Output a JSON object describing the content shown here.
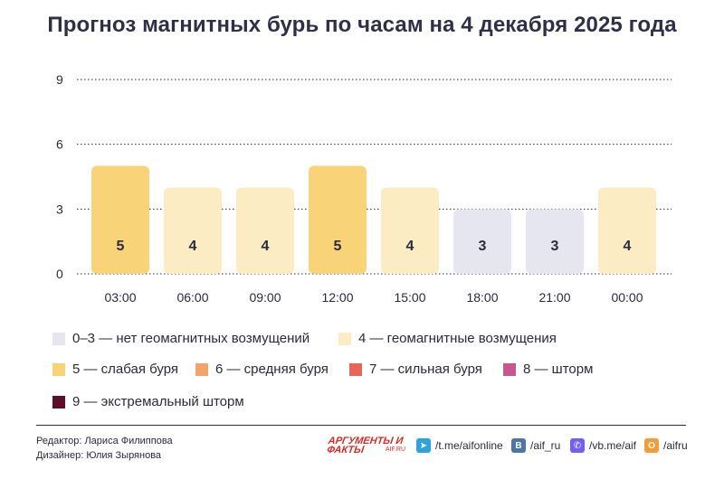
{
  "title": "Прогноз магнитных бурь по часам на 4 декабря 2025 года",
  "chart_data": {
    "type": "bar",
    "title": "Прогноз магнитных бурь по часам на 4 декабря 2025 года",
    "categories": [
      "03:00",
      "06:00",
      "09:00",
      "12:00",
      "15:00",
      "18:00",
      "21:00",
      "00:00"
    ],
    "values": [
      5,
      4,
      4,
      5,
      4,
      3,
      3,
      4
    ],
    "yticks": [
      0,
      3,
      6,
      9
    ],
    "ylim": [
      0,
      9
    ],
    "grid": true,
    "data_labels": true,
    "level_colors": {
      "0-3": "#e6e6f0",
      "4": "#fbecc4",
      "5": "#f8d378",
      "6": "#f4a36b",
      "7": "#ea6557",
      "8": "#c8568f",
      "9": "#5a0e2a"
    }
  },
  "legend": [
    {
      "label": "0–3 — нет геомагнитных возмущений",
      "color": "#e6e6f0"
    },
    {
      "label": "4 — геомагнитные возмущения",
      "color": "#fbecc4"
    },
    {
      "label": "5 — слабая буря",
      "color": "#f8d378"
    },
    {
      "label": "6 — средняя буря",
      "color": "#f4a36b"
    },
    {
      "label": "7 — сильная буря",
      "color": "#ea6557"
    },
    {
      "label": "8 — шторм",
      "color": "#c8568f"
    },
    {
      "label": "9 — экстремальный шторм",
      "color": "#5a0e2a"
    }
  ],
  "footer": {
    "editor": "Редактор: Лариса Филиппова",
    "designer": "Дизайнер: Юлия Зырянова",
    "logo_text": "АРГУМЕНТЫ И ФАКТЫ",
    "logo_sub": "AIF.RU",
    "social": [
      {
        "icon": "telegram-icon",
        "text": "/t.me/aifonline",
        "color": "#2fa3d9",
        "glyph": "➤"
      },
      {
        "icon": "vk-icon",
        "text": "/aif_ru",
        "color": "#4a76a8",
        "glyph": "В"
      },
      {
        "icon": "viber-icon",
        "text": "/vb.me/aif",
        "color": "#7360f2",
        "glyph": "✆"
      },
      {
        "icon": "odnoklassniki-icon",
        "text": "/aifru",
        "color": "#f29d38",
        "glyph": "О"
      }
    ]
  }
}
